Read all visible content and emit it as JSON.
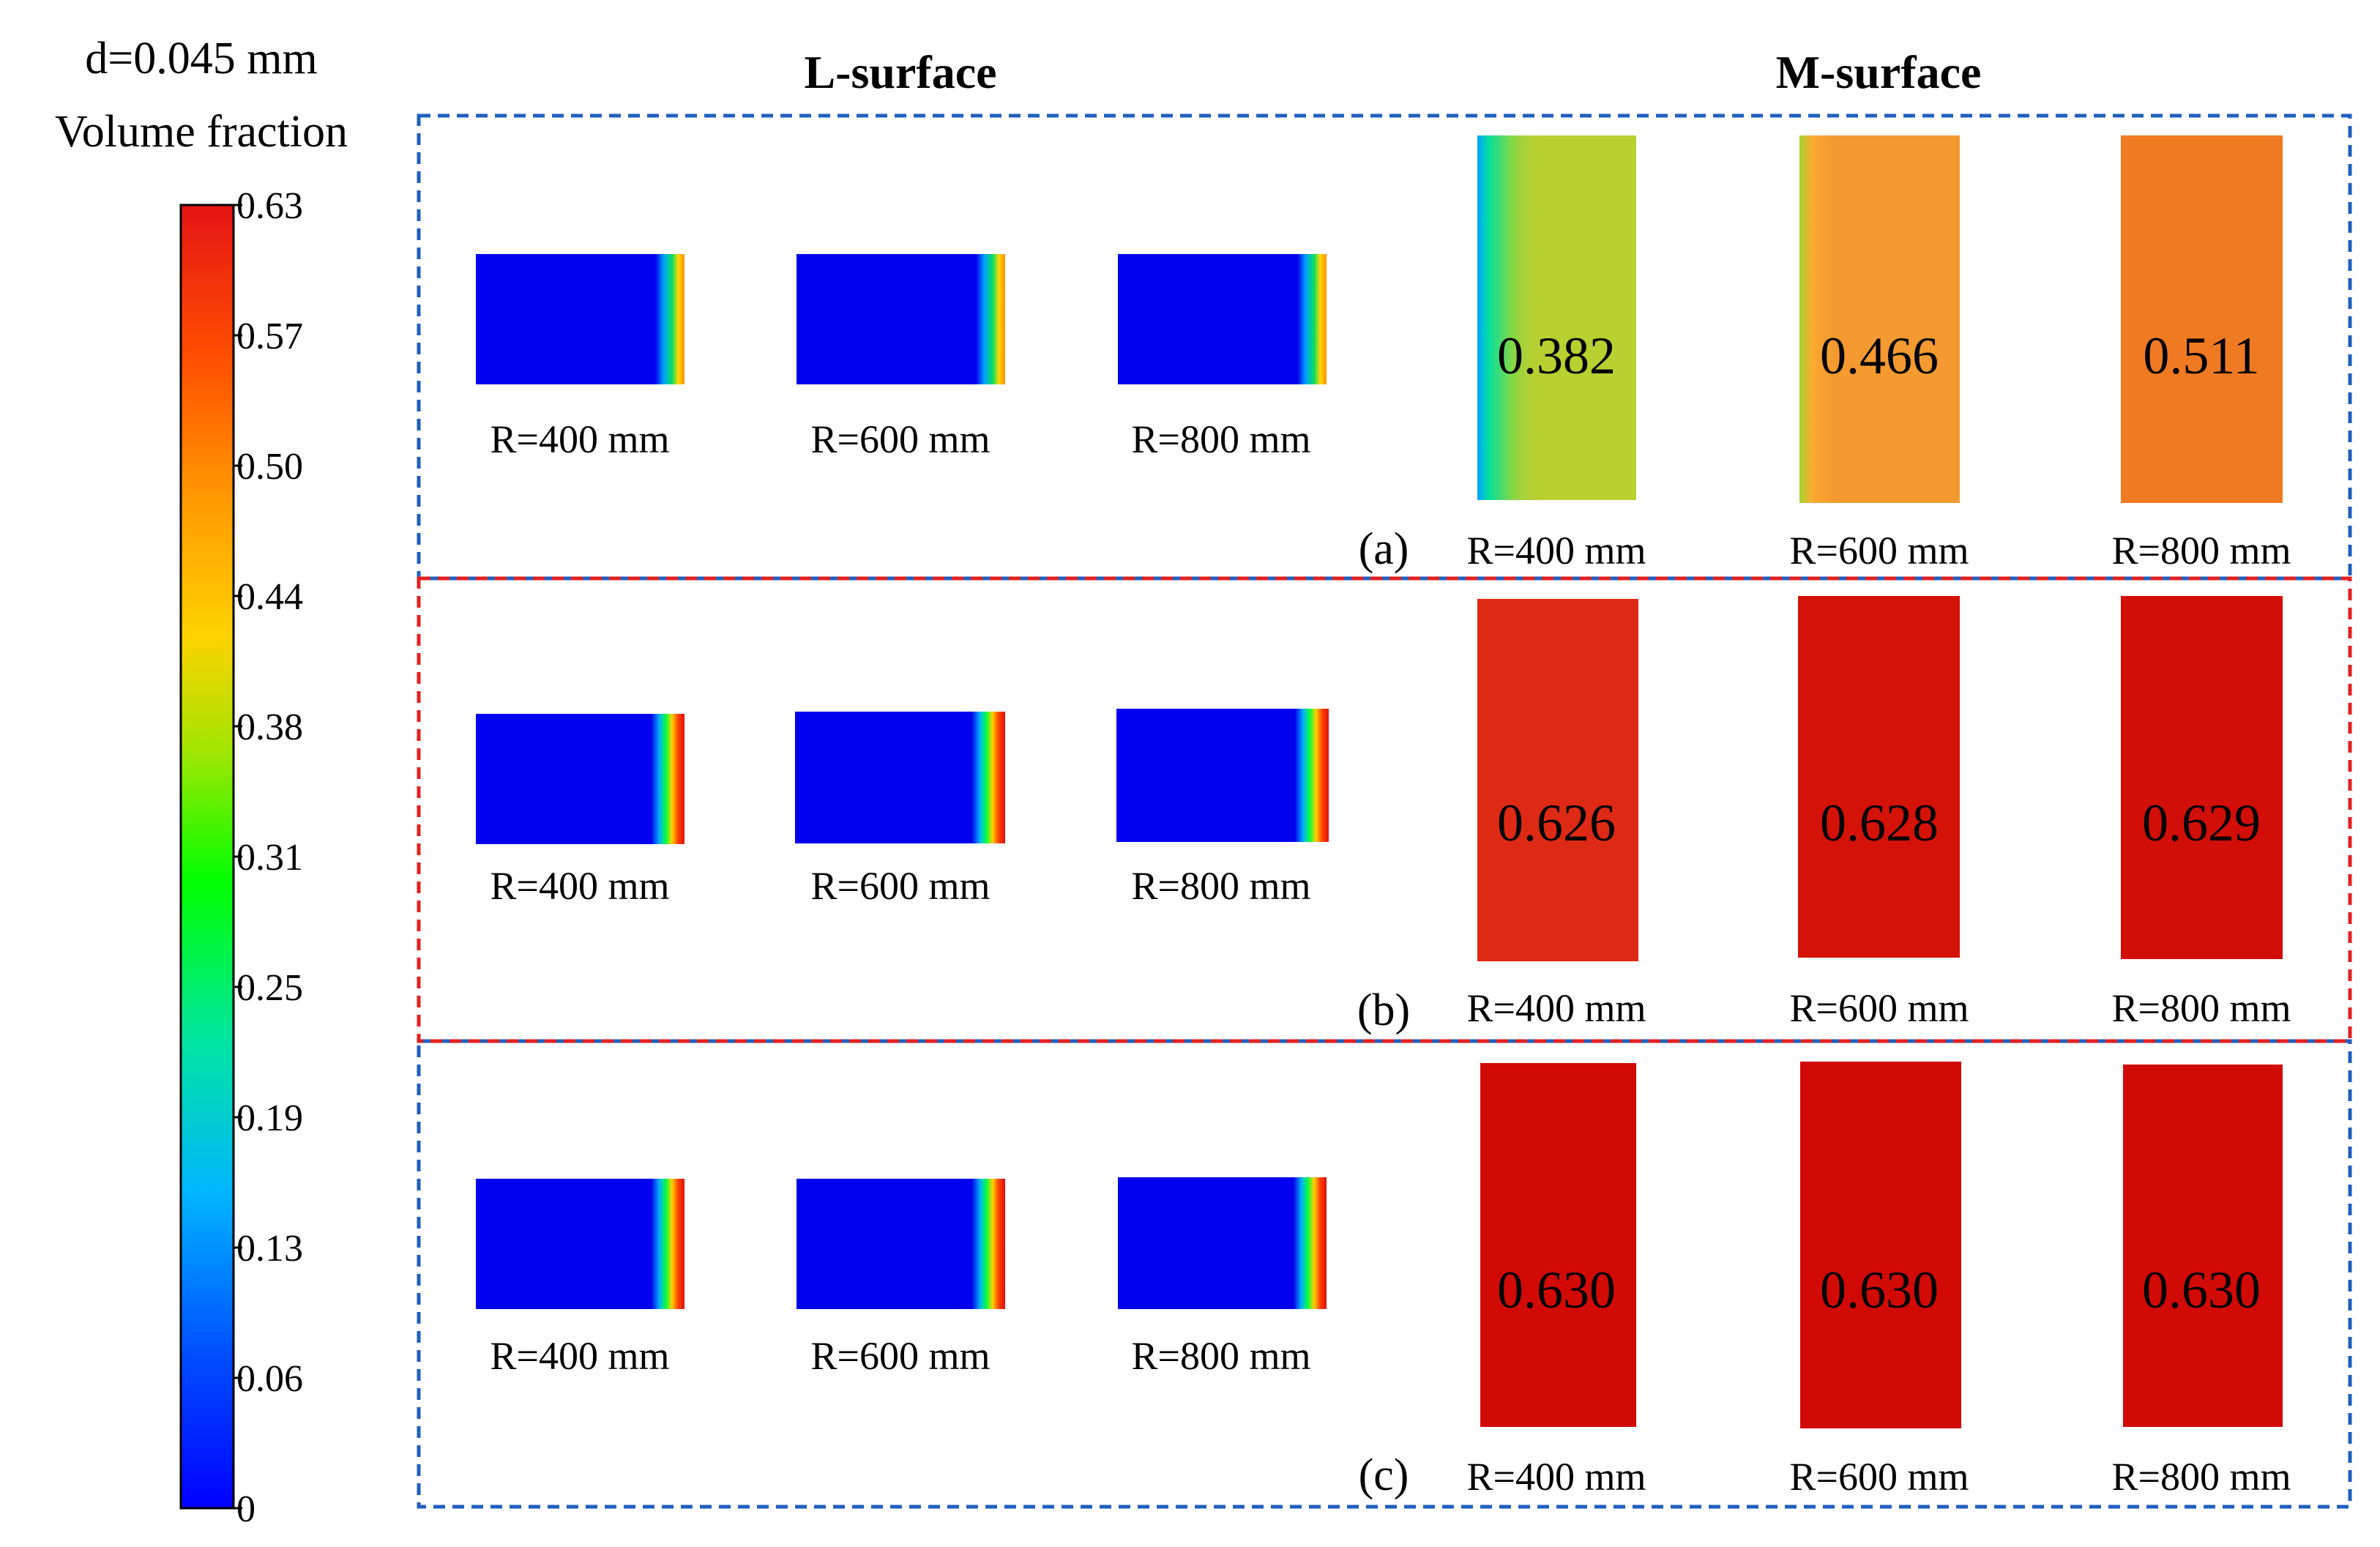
{
  "legend": {
    "diameter_label": "d=0.045 mm",
    "quantity_label": "Volume fraction",
    "ticks": [
      "0.63",
      "0.57",
      "0.50",
      "0.44",
      "0.38",
      "0.31",
      "0.25",
      "0.19",
      "0.13",
      "0.06",
      "0"
    ],
    "colormap": [
      "#0000ff",
      "#0064ff",
      "#00c8ff",
      "#00e68c",
      "#00ff00",
      "#b4e600",
      "#ffd200",
      "#ff9600",
      "#ff5000",
      "#e61414"
    ]
  },
  "headers": {
    "l_surface": "L-surface",
    "m_surface": "M-surface"
  },
  "frame_colors": {
    "a": "#1f5fbf",
    "b": "#e52020",
    "c": "#1f5fbf"
  },
  "panels": [
    {
      "tag": "(a)",
      "l_surface": [
        {
          "radius_label": "R=400 mm"
        },
        {
          "radius_label": "R=600 mm"
        },
        {
          "radius_label": "R=800 mm"
        }
      ],
      "m_surface": [
        {
          "radius_label": "R=400 mm",
          "value": "0.382",
          "fill_color": "#b8d030"
        },
        {
          "radius_label": "R=600 mm",
          "value": "0.466",
          "fill_color": "#f49a30"
        },
        {
          "radius_label": "R=800 mm",
          "value": "0.511",
          "fill_color": "#f07a22"
        }
      ]
    },
    {
      "tag": "(b)",
      "l_surface": [
        {
          "radius_label": "R=400 mm"
        },
        {
          "radius_label": "R=600 mm"
        },
        {
          "radius_label": "R=800 mm"
        }
      ],
      "m_surface": [
        {
          "radius_label": "R=400 mm",
          "value": "0.626",
          "fill_color": "#de2a14"
        },
        {
          "radius_label": "R=600 mm",
          "value": "0.628",
          "fill_color": "#d41208"
        },
        {
          "radius_label": "R=800 mm",
          "value": "0.629",
          "fill_color": "#d20e08"
        }
      ]
    },
    {
      "tag": "(c)",
      "l_surface": [
        {
          "radius_label": "R=400 mm"
        },
        {
          "radius_label": "R=600 mm"
        },
        {
          "radius_label": "R=800 mm"
        }
      ],
      "m_surface": [
        {
          "radius_label": "R=400 mm",
          "value": "0.630",
          "fill_color": "#d20a06"
        },
        {
          "radius_label": "R=600 mm",
          "value": "0.630",
          "fill_color": "#d20a06"
        },
        {
          "radius_label": "R=800 mm",
          "value": "0.630",
          "fill_color": "#d20a06"
        }
      ]
    }
  ]
}
